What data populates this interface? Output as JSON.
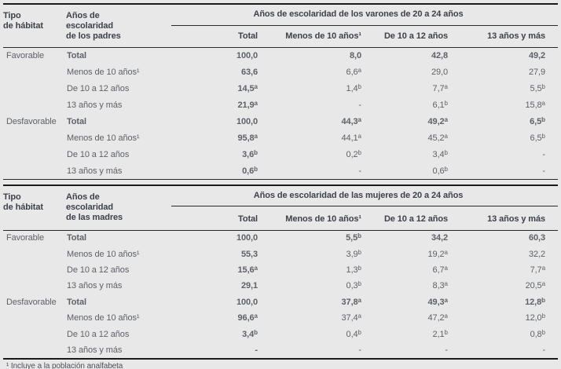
{
  "colors": {
    "background": "#e8e8e8",
    "text_bold": "#3d414b",
    "text_regular": "#5d6169",
    "rule": "#1a1a1d"
  },
  "footnote": "¹ Incluye a la población analfabeta",
  "tables": [
    {
      "col1_header": "Tipo\nde hábitat",
      "col2_header": "Años de\nescolaridad\nde los padres",
      "span_header": "Años de escolaridad de los varones de 20 a 24 años",
      "columns": [
        "Total",
        "Menos de 10 años¹",
        "De 10 a 12 años",
        "13 años y más"
      ],
      "sections": [
        {
          "habitat": "Favorable",
          "rows": [
            {
              "label": "Total",
              "bold": true,
              "values": [
                "100,0",
                "8,0",
                "42,8",
                "49,2"
              ]
            },
            {
              "label": "Menos de 10 años¹",
              "bold": false,
              "values": [
                "63,6",
                "6,6^a",
                "29,0",
                "27,9"
              ]
            },
            {
              "label": "De 10 a 12 años",
              "bold": false,
              "values": [
                "14,5^a",
                "1,4^b",
                "7,7^a",
                "5,5^b"
              ]
            },
            {
              "label": "13 años y más",
              "bold": false,
              "values": [
                "21,9^a",
                "-",
                "6,1^b",
                "15,8^a"
              ]
            }
          ]
        },
        {
          "habitat": "Desfavorable",
          "rows": [
            {
              "label": "Total",
              "bold": true,
              "values": [
                "100,0",
                "44,3^a",
                "49,2^a",
                "6,5^b"
              ]
            },
            {
              "label": "Menos de 10 años¹",
              "bold": false,
              "values": [
                "95,8^a",
                "44,1^a",
                "45,2^a",
                "6,5^b"
              ]
            },
            {
              "label": "De 10 a 12 años",
              "bold": false,
              "values": [
                "3,6^b",
                "0,2^b",
                "3,4^b",
                "-"
              ]
            },
            {
              "label": "13 años y más",
              "bold": false,
              "values": [
                "0,6^b",
                "-",
                "0,6^b",
                "-"
              ]
            }
          ]
        }
      ]
    },
    {
      "col1_header": "Tipo\nde hábitat",
      "col2_header": "Años de\nescolaridad\nde las madres",
      "span_header": "Años de escolaridad de las mujeres de 20 a 24 años",
      "columns": [
        "Total",
        "Menos de 10 años¹",
        "De 10 a 12 años",
        "13 años y más"
      ],
      "sections": [
        {
          "habitat": "Favorable",
          "rows": [
            {
              "label": "Total",
              "bold": true,
              "values": [
                "100,0",
                "5,5^b",
                "34,2",
                "60,3"
              ]
            },
            {
              "label": "Menos de 10 años¹",
              "bold": false,
              "values": [
                "55,3",
                "3,9^b",
                "19,2^a",
                "32,2"
              ]
            },
            {
              "label": "De 10 a 12 años",
              "bold": false,
              "values": [
                "15,6^a",
                "1,3^b",
                "6,7^a",
                "7,7^a"
              ]
            },
            {
              "label": "13 años y más",
              "bold": false,
              "values": [
                "29,1",
                "0,3^b",
                "8,3^a",
                "20,5^a"
              ]
            }
          ]
        },
        {
          "habitat": "Desfavorable",
          "rows": [
            {
              "label": "Total",
              "bold": true,
              "values": [
                "100,0",
                "37,8^a",
                "49,3^a",
                "12,8^b"
              ]
            },
            {
              "label": "Menos de 10 años¹",
              "bold": false,
              "values": [
                "96,6^a",
                "37,4^a",
                "47,2^a",
                "12,0^b"
              ]
            },
            {
              "label": "De 10 a 12 años",
              "bold": false,
              "values": [
                "3,4^b",
                "0,4^b",
                "2,1^b",
                "0,8^b"
              ]
            },
            {
              "label": "13 años y más",
              "bold": false,
              "values": [
                "-",
                "-",
                "-",
                "-"
              ]
            }
          ]
        }
      ]
    }
  ]
}
